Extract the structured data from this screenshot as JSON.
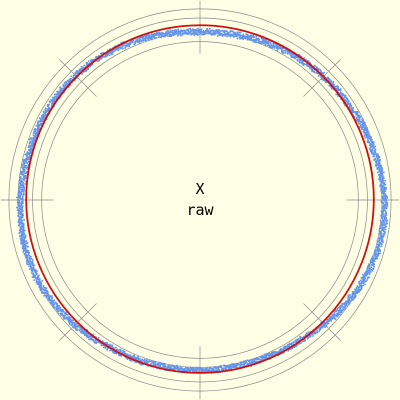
{
  "chart_data": {
    "type": "scatter",
    "subtype": "polar-roundness",
    "labels": {
      "axis": "X",
      "mode": "raw"
    },
    "reference_circles": [
      0.87,
      0.92,
      1.0,
      1.05
    ],
    "fit_circle": {
      "radius": 0.955,
      "center": [
        0.0,
        0.005
      ],
      "color": "#d01010"
    },
    "samples": {
      "color": "#6495ed",
      "base_radius": 0.965,
      "band_width": 0.03,
      "harmonics": [
        {
          "k": 2,
          "amp": 0.035,
          "phase": 0.0
        },
        {
          "k": 3,
          "amp": 0.008,
          "phase": 0.6
        },
        {
          "k": 5,
          "amp": 0.006,
          "phase": 1.2
        }
      ],
      "count": 4200
    },
    "grid_color": "#8a8a8a",
    "background": "#ffffe6"
  }
}
